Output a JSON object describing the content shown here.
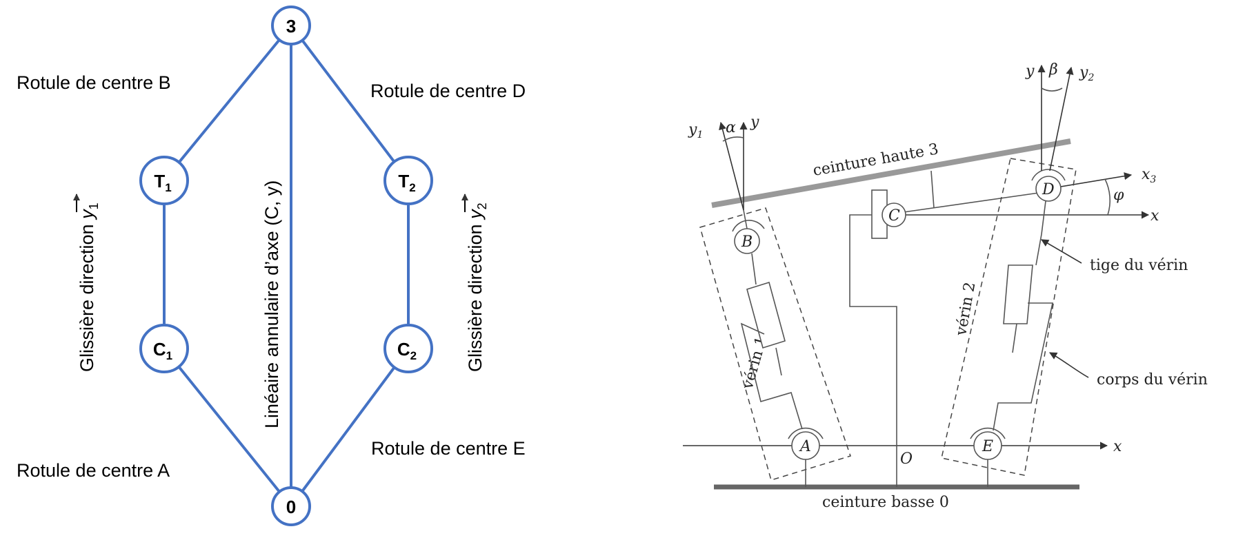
{
  "graph": {
    "nodes": {
      "n3": "3",
      "n0": "0",
      "T1": {
        "main": "T",
        "sub": "1"
      },
      "T2": {
        "main": "T",
        "sub": "2"
      },
      "C1": {
        "main": "C",
        "sub": "1"
      },
      "C2": {
        "main": "C",
        "sub": "2"
      }
    },
    "labels": {
      "rotule_b": "Rotule de centre B",
      "rotule_d": "Rotule de centre D",
      "rotule_a": "Rotule de centre A",
      "rotule_e": "Rotule de centre E",
      "glissiere_1_text": "Glissière direction ",
      "glissiere_1_vec": "y",
      "glissiere_1_sub": "1",
      "glissiere_2_text": "Glissière direction ",
      "glissiere_2_vec": "y",
      "glissiere_2_sub": "2",
      "lineaire": "Linéaire annulaire d’axe (C, y)"
    },
    "colors": {
      "edge": "#4472c4",
      "node_fill": "#ffffff"
    }
  },
  "mechanism": {
    "labels": {
      "ceinture_haute": "ceinture haute 3",
      "ceinture_basse": "ceinture basse 0",
      "verin_1": "vérin 1",
      "verin_2": "vérin 2",
      "tige": "tige du vérin",
      "corps": "corps du vérin",
      "O": "O",
      "A": "A",
      "B": "B",
      "C": "C",
      "D": "D",
      "E": "E",
      "x_bottom": "x",
      "x_mid": "x",
      "x3": "x",
      "x3_sub": "3",
      "y1": "y",
      "y1_sub": "1",
      "y_left": "y",
      "alpha": "α",
      "y_right": "y",
      "beta": "β",
      "y2": "y",
      "y2_sub": "2",
      "phi": "φ"
    }
  }
}
